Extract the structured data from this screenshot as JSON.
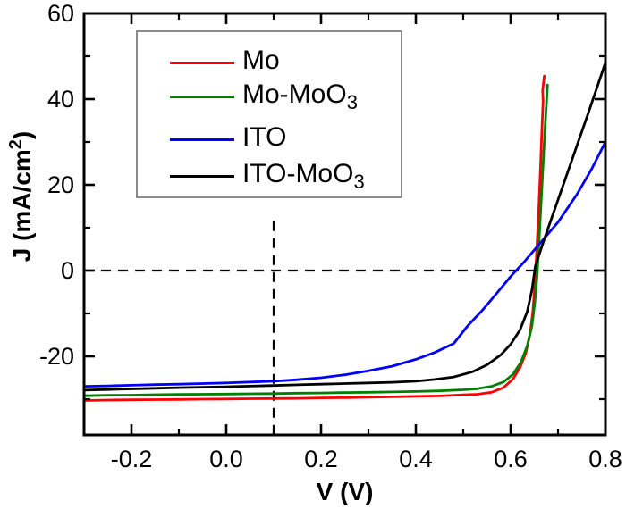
{
  "chart_data": {
    "type": "line",
    "title": "",
    "xlabel": "V (V)",
    "ylabel": {
      "pre": "J (mA/cm",
      "sup": "2",
      "post": ")"
    },
    "xlim": [
      -0.3,
      0.8
    ],
    "ylim": [
      -38.33,
      60
    ],
    "grid": false,
    "legend_position": "upper-left-inside",
    "axis_color": "#000000",
    "background": "#ffffff",
    "legend_border_color": "#8c8c8c",
    "x_major_ticks": [
      {
        "v": -0.2,
        "label": "-0.2"
      },
      {
        "v": 0.0,
        "label": "0.0"
      },
      {
        "v": 0.2,
        "label": "0.2"
      },
      {
        "v": 0.4,
        "label": "0.4"
      },
      {
        "v": 0.6,
        "label": "0.6"
      },
      {
        "v": 0.8,
        "label": "0.8"
      }
    ],
    "x_minor_ticks": [
      -0.1,
      0.1,
      0.3,
      0.5,
      0.7
    ],
    "y_major_ticks": [
      {
        "v": 60,
        "label": "60"
      },
      {
        "v": 40,
        "label": "40"
      },
      {
        "v": 20,
        "label": "20"
      },
      {
        "v": 0,
        "label": "0"
      },
      {
        "v": -20,
        "label": "-20"
      }
    ],
    "y_minor_ticks": [
      50,
      30,
      10,
      -10,
      -30
    ],
    "guides": [
      {
        "name": "zero-current-guide",
        "type": "h",
        "j": 0,
        "from_v": -0.3,
        "to_v": 0.8
      },
      {
        "name": "bias-voltage-guide",
        "type": "v",
        "v": 0.1,
        "from_j": 11.5,
        "to_j": -38.33
      }
    ],
    "legend": {
      "items": [
        {
          "pre": "Mo",
          "sub": ""
        },
        {
          "pre": "Mo-MoO",
          "sub": "3"
        },
        {
          "pre": "ITO",
          "sub": ""
        },
        {
          "pre": "ITO-MoO",
          "sub": "3"
        }
      ]
    },
    "series": [
      {
        "name": "Mo",
        "color": "#ff0000",
        "points": [
          [
            -0.3,
            -30.3
          ],
          [
            -0.25,
            -30.2
          ],
          [
            -0.2,
            -30.15
          ],
          [
            -0.15,
            -30.1
          ],
          [
            -0.1,
            -30.05
          ],
          [
            -0.05,
            -30.0
          ],
          [
            0.0,
            -29.95
          ],
          [
            0.05,
            -29.9
          ],
          [
            0.1,
            -29.85
          ],
          [
            0.15,
            -29.8
          ],
          [
            0.2,
            -29.7
          ],
          [
            0.25,
            -29.65
          ],
          [
            0.3,
            -29.55
          ],
          [
            0.35,
            -29.45
          ],
          [
            0.4,
            -29.35
          ],
          [
            0.45,
            -29.25
          ],
          [
            0.5,
            -29.0
          ],
          [
            0.53,
            -28.85
          ],
          [
            0.56,
            -28.4
          ],
          [
            0.585,
            -27.3
          ],
          [
            0.605,
            -25.3
          ],
          [
            0.62,
            -22.6
          ],
          [
            0.632,
            -19.2
          ],
          [
            0.641,
            -14.8
          ],
          [
            0.647,
            -9.5
          ],
          [
            0.651,
            -3.5
          ],
          [
            0.655,
            4.5
          ],
          [
            0.659,
            13.5
          ],
          [
            0.663,
            24.0
          ],
          [
            0.666,
            33.0
          ],
          [
            0.6685,
            39.5
          ],
          [
            0.6675,
            42.0
          ],
          [
            0.671,
            45.4
          ]
        ]
      },
      {
        "name": "Mo-MoO3",
        "color": "#008000",
        "points": [
          [
            -0.3,
            -29.2
          ],
          [
            -0.25,
            -29.1
          ],
          [
            -0.2,
            -29.05
          ],
          [
            -0.15,
            -28.95
          ],
          [
            -0.1,
            -28.9
          ],
          [
            -0.05,
            -28.85
          ],
          [
            0.0,
            -28.8
          ],
          [
            0.05,
            -28.75
          ],
          [
            0.1,
            -28.7
          ],
          [
            0.15,
            -28.6
          ],
          [
            0.2,
            -28.55
          ],
          [
            0.25,
            -28.45
          ],
          [
            0.3,
            -28.4
          ],
          [
            0.35,
            -28.3
          ],
          [
            0.4,
            -28.2
          ],
          [
            0.45,
            -28.05
          ],
          [
            0.5,
            -27.8
          ],
          [
            0.53,
            -27.55
          ],
          [
            0.56,
            -27.0
          ],
          [
            0.585,
            -26.0
          ],
          [
            0.605,
            -24.2
          ],
          [
            0.622,
            -21.3
          ],
          [
            0.635,
            -17.6
          ],
          [
            0.645,
            -12.8
          ],
          [
            0.651,
            -7.5
          ],
          [
            0.656,
            -1.0
          ],
          [
            0.66,
            7.0
          ],
          [
            0.665,
            17.5
          ],
          [
            0.67,
            28.0
          ],
          [
            0.674,
            36.0
          ],
          [
            0.678,
            43.3
          ]
        ]
      },
      {
        "name": "ITO",
        "color": "#0000ff",
        "points": [
          [
            -0.3,
            -27.0
          ],
          [
            -0.25,
            -26.9
          ],
          [
            -0.2,
            -26.75
          ],
          [
            -0.15,
            -26.6
          ],
          [
            -0.1,
            -26.5
          ],
          [
            -0.05,
            -26.35
          ],
          [
            0.0,
            -26.2
          ],
          [
            0.05,
            -26.0
          ],
          [
            0.1,
            -25.8
          ],
          [
            0.15,
            -25.45
          ],
          [
            0.2,
            -25.0
          ],
          [
            0.25,
            -24.3
          ],
          [
            0.3,
            -23.4
          ],
          [
            0.35,
            -22.3
          ],
          [
            0.4,
            -20.7
          ],
          [
            0.44,
            -19.1
          ],
          [
            0.48,
            -17.0
          ],
          [
            0.51,
            -12.8
          ],
          [
            0.54,
            -9.3
          ],
          [
            0.57,
            -5.4
          ],
          [
            0.6,
            -1.4
          ],
          [
            0.63,
            2.2
          ],
          [
            0.66,
            6.1
          ],
          [
            0.7,
            11.3
          ],
          [
            0.74,
            17.8
          ],
          [
            0.77,
            23.5
          ],
          [
            0.8,
            30.0
          ]
        ]
      },
      {
        "name": "ITO-MoO3",
        "color": "#000000",
        "points": [
          [
            -0.3,
            -27.9
          ],
          [
            -0.25,
            -27.75
          ],
          [
            -0.2,
            -27.6
          ],
          [
            -0.15,
            -27.45
          ],
          [
            -0.1,
            -27.3
          ],
          [
            -0.05,
            -27.2
          ],
          [
            0.0,
            -27.1
          ],
          [
            0.05,
            -26.95
          ],
          [
            0.1,
            -26.8
          ],
          [
            0.15,
            -26.65
          ],
          [
            0.2,
            -26.5
          ],
          [
            0.25,
            -26.35
          ],
          [
            0.3,
            -26.2
          ],
          [
            0.35,
            -26.05
          ],
          [
            0.4,
            -25.8
          ],
          [
            0.44,
            -25.4
          ],
          [
            0.48,
            -24.8
          ],
          [
            0.52,
            -23.6
          ],
          [
            0.55,
            -22.0
          ],
          [
            0.58,
            -19.6
          ],
          [
            0.6,
            -17.2
          ],
          [
            0.62,
            -13.8
          ],
          [
            0.635,
            -9.6
          ],
          [
            0.645,
            -4.5
          ],
          [
            0.652,
            1.0
          ],
          [
            0.67,
            7.0
          ],
          [
            0.7,
            16.5
          ],
          [
            0.73,
            26.0
          ],
          [
            0.76,
            35.5
          ],
          [
            0.78,
            42.0
          ],
          [
            0.8,
            48.5
          ]
        ]
      }
    ]
  }
}
